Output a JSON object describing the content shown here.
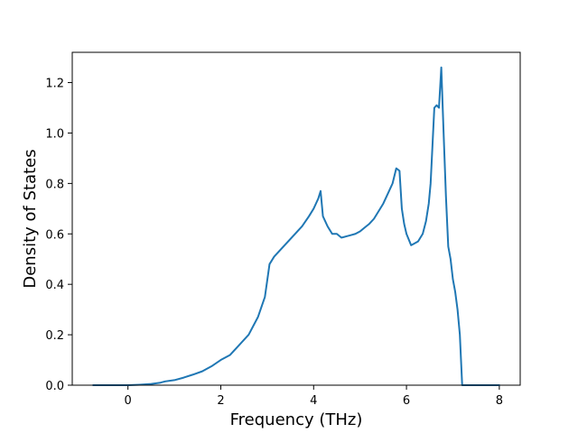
{
  "chart_data": {
    "type": "line",
    "xlabel": "Frequency (THz)",
    "ylabel": "Density of States",
    "xlim": [
      -1.2,
      8.45
    ],
    "ylim": [
      0.0,
      1.32
    ],
    "xticks": [
      0,
      2,
      4,
      6,
      8
    ],
    "xtick_labels": [
      "0",
      "2",
      "4",
      "6",
      "8"
    ],
    "yticks": [
      0.0,
      0.2,
      0.4,
      0.6,
      0.8,
      1.0,
      1.2
    ],
    "ytick_labels": [
      "0.0",
      "0.2",
      "0.4",
      "0.6",
      "0.8",
      "1.0",
      "1.2"
    ],
    "grid": false,
    "line_color": "#1f77b4",
    "series": [
      {
        "x": [
          -0.75,
          -0.5,
          -0.25,
          0.0,
          0.25,
          0.5,
          0.7,
          0.8,
          1.0,
          1.2,
          1.4,
          1.6,
          1.8,
          2.0,
          2.2,
          2.4,
          2.6,
          2.8,
          2.95,
          3.05,
          3.15,
          3.3,
          3.45,
          3.6,
          3.75,
          3.9,
          4.0,
          4.1,
          4.15,
          4.2,
          4.3,
          4.4,
          4.5,
          4.6,
          4.7,
          4.8,
          4.9,
          5.0,
          5.1,
          5.2,
          5.3,
          5.4,
          5.5,
          5.6,
          5.7,
          5.78,
          5.85,
          5.9,
          5.95,
          6.0,
          6.1,
          6.15,
          6.25,
          6.35,
          6.42,
          6.48,
          6.52,
          6.56,
          6.6,
          6.65,
          6.7,
          6.75,
          6.8,
          6.85,
          6.9,
          6.95,
          7.0,
          7.05,
          7.1,
          7.15,
          7.2,
          7.25,
          7.3,
          7.5,
          7.75,
          8.0
        ],
        "y": [
          0.0,
          0.0,
          0.0,
          0.0,
          0.002,
          0.005,
          0.01,
          0.015,
          0.02,
          0.03,
          0.042,
          0.055,
          0.075,
          0.1,
          0.12,
          0.16,
          0.2,
          0.27,
          0.35,
          0.48,
          0.51,
          0.54,
          0.57,
          0.6,
          0.63,
          0.67,
          0.7,
          0.74,
          0.77,
          0.67,
          0.63,
          0.6,
          0.6,
          0.585,
          0.59,
          0.595,
          0.6,
          0.61,
          0.625,
          0.64,
          0.66,
          0.69,
          0.72,
          0.76,
          0.8,
          0.86,
          0.85,
          0.7,
          0.64,
          0.6,
          0.555,
          0.56,
          0.57,
          0.6,
          0.65,
          0.72,
          0.8,
          0.95,
          1.1,
          1.11,
          1.1,
          1.26,
          1.0,
          0.75,
          0.55,
          0.5,
          0.42,
          0.37,
          0.3,
          0.2,
          0.0,
          0.0,
          0.0,
          0.0,
          0.0,
          0.0
        ]
      }
    ]
  }
}
